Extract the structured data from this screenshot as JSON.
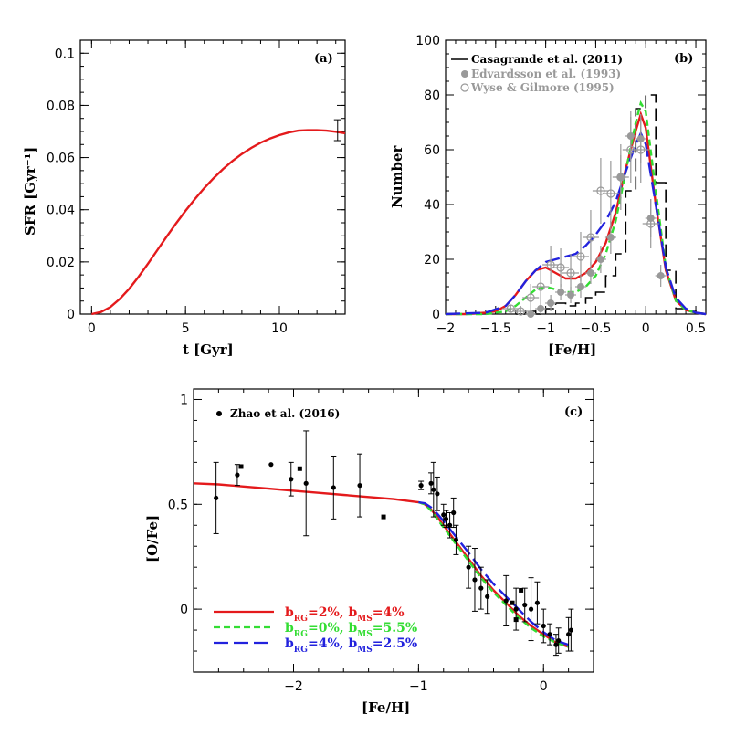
{
  "colors": {
    "red": "#e41a1c",
    "green": "#33dd33",
    "blue": "#2222dd",
    "black": "#000000",
    "gray": "#999999"
  },
  "chart_data": [
    {
      "type": "line",
      "panel_label": "(a)",
      "xlabel": "t  [Gyr]",
      "ylabel": "SFR [Gyr⁻¹]",
      "xlim": [
        -0.6,
        13.5
      ],
      "ylim": [
        0,
        0.105
      ],
      "xticks": [
        0,
        5,
        10
      ],
      "yticks": [
        0,
        0.02,
        0.04,
        0.06,
        0.08,
        0.1
      ],
      "ytick_labels": [
        "0",
        "0.02",
        "0.04",
        "0.06",
        "0.08",
        "0.1"
      ],
      "series": [
        {
          "color": "red",
          "x": [
            0,
            0.5,
            1,
            1.5,
            2,
            2.5,
            3,
            3.5,
            4,
            4.5,
            5,
            5.5,
            6,
            6.5,
            7,
            7.5,
            8,
            8.5,
            9,
            9.5,
            10,
            10.5,
            11,
            11.5,
            12,
            12.5,
            13,
            13.5
          ],
          "y": [
            0,
            0.0008,
            0.0027,
            0.0058,
            0.0097,
            0.0143,
            0.0193,
            0.0245,
            0.0297,
            0.0348,
            0.0396,
            0.0441,
            0.0483,
            0.0521,
            0.0556,
            0.0587,
            0.0614,
            0.0637,
            0.0657,
            0.0673,
            0.0686,
            0.0696,
            0.0703,
            0.0705,
            0.0705,
            0.0703,
            0.0699,
            0.0693
          ]
        }
      ],
      "error_bar": {
        "x": 13.1,
        "y": 0.0705,
        "err": 0.004
      }
    },
    {
      "type": "line",
      "panel_label": "(b)",
      "xlabel": "[Fe/H]",
      "ylabel": "Number",
      "xlim": [
        -2.0,
        0.6
      ],
      "ylim": [
        0,
        100
      ],
      "xticks": [
        -2,
        -1.5,
        -1,
        -0.5,
        0,
        0.5
      ],
      "xtick_labels": [
        "−2",
        "−1.5",
        "−1",
        "−0.5",
        "0",
        "0.5"
      ],
      "yticks": [
        0,
        20,
        40,
        60,
        80,
        100
      ],
      "legend": [
        {
          "label": "Casagrande et al. (2011)",
          "color": "black",
          "marker": "line"
        },
        {
          "label": "Edvardsson et al. (1993)",
          "color": "gray",
          "marker": "filled-circle"
        },
        {
          "label": "Wyse & Gilmore (1995)",
          "color": "gray",
          "marker": "open-circle"
        }
      ],
      "histogram": {
        "edges": [
          -1.3,
          -1.2,
          -1.1,
          -1.0,
          -0.9,
          -0.8,
          -0.7,
          -0.6,
          -0.5,
          -0.4,
          -0.3,
          -0.2,
          -0.1,
          0.0,
          0.1,
          0.2,
          0.3,
          0.4,
          0.5
        ],
        "counts": [
          0,
          1,
          0,
          2,
          4,
          3,
          4,
          6,
          8,
          14,
          22,
          45,
          75,
          80,
          48,
          16,
          2,
          1
        ]
      },
      "edvardsson": {
        "x": [
          -1.15,
          -1.05,
          -0.95,
          -0.85,
          -0.75,
          -0.65,
          -0.55,
          -0.45,
          -0.35,
          -0.25,
          -0.15,
          -0.05,
          0.05,
          0.15
        ],
        "y": [
          0,
          2,
          4,
          8,
          7,
          10,
          15,
          20,
          28,
          50,
          65,
          64,
          35,
          14
        ],
        "err": [
          1.5,
          2,
          3,
          3,
          3,
          4,
          4,
          5,
          6,
          8,
          9,
          9,
          7,
          4
        ]
      },
      "wyse": {
        "x": [
          -1.35,
          -1.25,
          -1.15,
          -1.05,
          -0.95,
          -0.85,
          -0.75,
          -0.65,
          -0.55,
          -0.45,
          -0.35,
          -0.25,
          -0.15,
          -0.05,
          0.05
        ],
        "y": [
          2,
          1,
          6,
          10,
          18,
          17,
          15,
          21,
          28,
          45,
          44,
          50,
          60,
          60,
          33
        ],
        "err": [
          1.5,
          2,
          5,
          6,
          7,
          7,
          7,
          9,
          10,
          12,
          12,
          12,
          12,
          12,
          9
        ]
      },
      "series": [
        {
          "color": "red",
          "dash": "solid",
          "x": [
            -2.0,
            -1.8,
            -1.6,
            -1.5,
            -1.4,
            -1.3,
            -1.2,
            -1.1,
            -1.0,
            -0.9,
            -0.8,
            -0.7,
            -0.6,
            -0.5,
            -0.4,
            -0.3,
            -0.2,
            -0.1,
            -0.05,
            0.0,
            0.1,
            0.2,
            0.3,
            0.4,
            0.5,
            0.6
          ],
          "y": [
            0,
            0,
            0.5,
            1,
            3,
            7,
            12,
            16,
            17,
            15,
            13,
            13,
            15,
            19,
            26,
            37,
            53,
            67,
            73,
            68,
            40,
            16,
            5,
            1.5,
            0.5,
            0
          ]
        },
        {
          "color": "green",
          "dash": "short",
          "x": [
            -2.0,
            -1.6,
            -1.4,
            -1.3,
            -1.2,
            -1.1,
            -1.0,
            -0.9,
            -0.8,
            -0.7,
            -0.6,
            -0.5,
            -0.4,
            -0.3,
            -0.2,
            -0.1,
            -0.05,
            0.0,
            0.1,
            0.2,
            0.3,
            0.4,
            0.5,
            0.6
          ],
          "y": [
            0,
            0,
            1,
            3,
            6,
            9,
            10,
            9,
            8,
            8,
            10,
            14,
            22,
            34,
            52,
            70,
            77,
            74,
            45,
            17,
            5,
            1.5,
            0.5,
            0
          ]
        },
        {
          "color": "blue",
          "dash": "long",
          "x": [
            -2.0,
            -1.6,
            -1.4,
            -1.3,
            -1.2,
            -1.1,
            -1.0,
            -0.9,
            -0.8,
            -0.7,
            -0.6,
            -0.5,
            -0.4,
            -0.3,
            -0.2,
            -0.1,
            -0.05,
            0.0,
            0.1,
            0.2,
            0.3,
            0.4,
            0.5,
            0.6
          ],
          "y": [
            0,
            0.5,
            3,
            7,
            12,
            16,
            19,
            20,
            21,
            22,
            25,
            29,
            34,
            41,
            52,
            62,
            66,
            62,
            40,
            17,
            6,
            2,
            0.5,
            0
          ]
        }
      ]
    },
    {
      "type": "line",
      "panel_label": "(c)",
      "xlabel": "[Fe/H]",
      "ylabel": "[O/Fe]",
      "xlim": [
        -2.8,
        0.4
      ],
      "ylim": [
        -0.3,
        1.05
      ],
      "xticks": [
        -2,
        -1,
        0
      ],
      "xtick_labels": [
        "−2",
        "−1",
        "0"
      ],
      "yticks": [
        0,
        0.5,
        1
      ],
      "legend_data": "Zhao et al. (2016)",
      "legend": [
        {
          "label_main": "b",
          "sub1": "RG",
          "eq1": "=2%,  b",
          "sub2": "MS",
          "eq2": "=4%",
          "color": "red",
          "dash": "solid"
        },
        {
          "label_main": "b",
          "sub1": "RG",
          "eq1": "=0%,  b",
          "sub2": "MS",
          "eq2": "=5.5%",
          "color": "green",
          "dash": "short"
        },
        {
          "label_main": "b",
          "sub1": "RG",
          "eq1": "=4%,  b",
          "sub2": "MS",
          "eq2": "=2.5%",
          "color": "blue",
          "dash": "long"
        }
      ],
      "points": {
        "x": [
          -2.62,
          -2.45,
          -2.18,
          -2.02,
          -1.9,
          -1.68,
          -1.47,
          -0.98,
          -0.9,
          -0.88,
          -0.85,
          -0.8,
          -0.78,
          -0.75,
          -0.72,
          -0.7,
          -0.6,
          -0.55,
          -0.5,
          -0.45,
          -0.3,
          -0.22,
          -0.15,
          -0.1,
          -0.05,
          0.0,
          0.05,
          0.1,
          0.12,
          0.2,
          0.22
        ],
        "y": [
          0.53,
          0.64,
          0.69,
          0.62,
          0.6,
          0.58,
          0.59,
          0.59,
          0.6,
          0.57,
          0.55,
          0.45,
          0.43,
          0.4,
          0.46,
          0.33,
          0.2,
          0.14,
          0.1,
          0.06,
          0.04,
          0.0,
          0.02,
          0.0,
          0.03,
          -0.08,
          -0.12,
          -0.17,
          -0.15,
          -0.12,
          -0.1
        ],
        "err": [
          0.17,
          0.05,
          0.0,
          0.08,
          0.25,
          0.15,
          0.15,
          0.02,
          0.05,
          0.13,
          0.08,
          0.05,
          0.04,
          0.06,
          0.07,
          0.07,
          0.1,
          0.15,
          0.1,
          0.08,
          0.12,
          0.1,
          0.08,
          0.15,
          0.1,
          0.08,
          0.05,
          0.05,
          0.06,
          0.08,
          0.1
        ]
      },
      "squares": {
        "x": [
          -2.42,
          -1.95,
          -1.28,
          -0.22,
          -0.18,
          -0.25
        ],
        "y": [
          0.68,
          0.67,
          0.44,
          -0.05,
          0.09,
          0.03
        ]
      },
      "series": [
        {
          "color": "red",
          "dash": "solid",
          "x": [
            -2.8,
            -2.6,
            -2.4,
            -2.2,
            -2.0,
            -1.8,
            -1.6,
            -1.4,
            -1.2,
            -1.0,
            -0.95,
            -0.9,
            -0.85,
            -0.8,
            -0.7,
            -0.6,
            -0.5,
            -0.4,
            -0.3,
            -0.2,
            -0.1,
            0.0,
            0.1,
            0.2
          ],
          "y": [
            0.6,
            0.595,
            0.585,
            0.575,
            0.565,
            0.555,
            0.545,
            0.535,
            0.525,
            0.51,
            0.5,
            0.475,
            0.44,
            0.4,
            0.32,
            0.24,
            0.16,
            0.09,
            0.03,
            -0.03,
            -0.08,
            -0.12,
            -0.16,
            -0.18
          ]
        },
        {
          "color": "green",
          "dash": "short",
          "x": [
            -1.0,
            -0.95,
            -0.9,
            -0.85,
            -0.8,
            -0.7,
            -0.6,
            -0.5,
            -0.4,
            -0.3,
            -0.2,
            -0.1,
            0.0,
            0.1,
            0.2
          ],
          "y": [
            0.51,
            0.5,
            0.47,
            0.43,
            0.39,
            0.31,
            0.23,
            0.15,
            0.08,
            0.02,
            -0.04,
            -0.09,
            -0.13,
            -0.16,
            -0.18
          ]
        },
        {
          "color": "blue",
          "dash": "long",
          "x": [
            -1.0,
            -0.95,
            -0.9,
            -0.85,
            -0.8,
            -0.7,
            -0.6,
            -0.5,
            -0.4,
            -0.3,
            -0.2,
            -0.1,
            0.0,
            0.1,
            0.2
          ],
          "y": [
            0.51,
            0.505,
            0.485,
            0.455,
            0.42,
            0.345,
            0.27,
            0.19,
            0.12,
            0.06,
            0.0,
            -0.06,
            -0.11,
            -0.15,
            -0.17
          ]
        }
      ]
    }
  ]
}
